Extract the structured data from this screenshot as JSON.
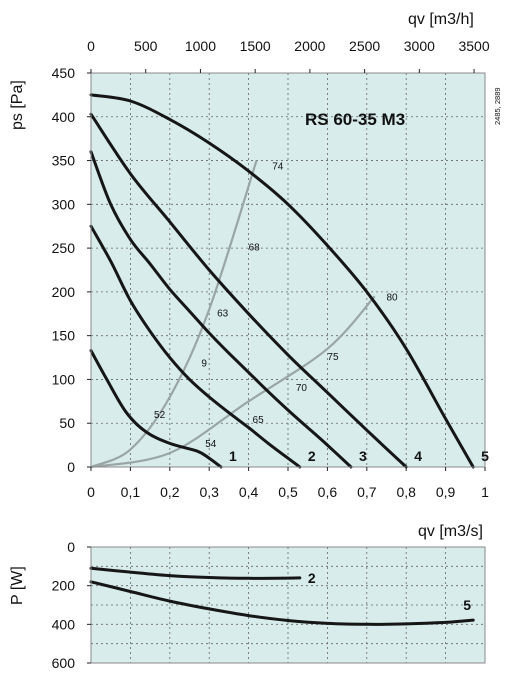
{
  "chart_data": [
    {
      "type": "line",
      "title": "RS 60-35 M3",
      "reference_note": "2485, 2889",
      "xlabel_top": "qv [m3/h]",
      "xlabel_bottom": "qv [m3/s]",
      "ylabel": "ps [Pa]",
      "xlim": [
        0,
        1
      ],
      "ylim": [
        0,
        450
      ],
      "x_top_ticks": [
        "0",
        "500",
        "1000",
        "1500",
        "2000",
        "2500",
        "3000",
        "3500"
      ],
      "x_bottom_ticks": [
        "0",
        "0,1",
        "0,2",
        "0,3",
        "0,4",
        "0,5",
        "0,6",
        "0,7",
        "0,8",
        "0,9",
        "1"
      ],
      "y_ticks": [
        "0",
        "50",
        "100",
        "150",
        "200",
        "250",
        "300",
        "350",
        "400",
        "450"
      ],
      "grid": true,
      "series": [
        {
          "name": "1",
          "x": [
            0,
            0.04,
            0.09,
            0.14,
            0.2,
            0.27,
            0.3,
            0.33
          ],
          "y": [
            133,
            100,
            62,
            40,
            27,
            18,
            10,
            0
          ]
        },
        {
          "name": "2",
          "x": [
            0,
            0.05,
            0.1,
            0.15,
            0.2,
            0.25,
            0.3,
            0.35,
            0.4,
            0.45,
            0.5,
            0.53
          ],
          "y": [
            275,
            235,
            190,
            155,
            125,
            100,
            80,
            62,
            45,
            27,
            10,
            0
          ]
        },
        {
          "name": "3",
          "x": [
            0,
            0.05,
            0.1,
            0.15,
            0.2,
            0.25,
            0.3,
            0.35,
            0.4,
            0.45,
            0.5,
            0.55,
            0.6,
            0.66
          ],
          "y": [
            360,
            300,
            260,
            232,
            203,
            178,
            153,
            130,
            108,
            86,
            65,
            45,
            25,
            0
          ]
        },
        {
          "name": "4",
          "x": [
            0,
            0.1,
            0.2,
            0.3,
            0.4,
            0.5,
            0.6,
            0.7,
            0.8
          ],
          "y": [
            403,
            335,
            280,
            225,
            175,
            128,
            85,
            42,
            0
          ]
        },
        {
          "name": "5",
          "x": [
            0,
            0.1,
            0.2,
            0.3,
            0.4,
            0.5,
            0.6,
            0.7,
            0.8,
            0.9,
            0.97
          ],
          "y": [
            425,
            418,
            397,
            370,
            338,
            300,
            253,
            200,
            135,
            55,
            0
          ]
        }
      ],
      "efficiency_labels": [
        {
          "text": "74",
          "x": 0.46,
          "y": 340
        },
        {
          "text": "68",
          "x": 0.4,
          "y": 247
        },
        {
          "text": "63",
          "x": 0.32,
          "y": 172
        },
        {
          "text": "9",
          "x": 0.28,
          "y": 115
        },
        {
          "text": "52",
          "x": 0.16,
          "y": 56
        },
        {
          "text": "54",
          "x": 0.29,
          "y": 23
        },
        {
          "text": "80",
          "x": 0.75,
          "y": 190
        },
        {
          "text": "75",
          "x": 0.6,
          "y": 122
        },
        {
          "text": "70",
          "x": 0.52,
          "y": 87
        },
        {
          "text": "65",
          "x": 0.41,
          "y": 50
        }
      ],
      "system_curves": [
        {
          "x": [
            0,
            0.1,
            0.2,
            0.3,
            0.42
          ],
          "y": [
            0,
            20,
            80,
            180,
            350
          ]
        },
        {
          "x": [
            0,
            0.2,
            0.4,
            0.6,
            0.72
          ],
          "y": [
            0,
            16,
            75,
            135,
            195
          ]
        }
      ]
    },
    {
      "type": "line",
      "xlabel": "",
      "ylabel": "P [W]",
      "xlim": [
        0,
        1
      ],
      "ylim": [
        600,
        0
      ],
      "y_ticks": [
        "0",
        "200",
        "400",
        "600"
      ],
      "grid": true,
      "series": [
        {
          "name": "2",
          "x": [
            0,
            0.1,
            0.2,
            0.3,
            0.4,
            0.53
          ],
          "y": [
            110,
            130,
            148,
            158,
            162,
            160
          ]
        },
        {
          "name": "5",
          "x": [
            0,
            0.1,
            0.2,
            0.3,
            0.4,
            0.5,
            0.6,
            0.7,
            0.8,
            0.9,
            0.97
          ],
          "y": [
            180,
            230,
            280,
            320,
            355,
            380,
            395,
            400,
            398,
            390,
            378
          ]
        }
      ]
    }
  ]
}
